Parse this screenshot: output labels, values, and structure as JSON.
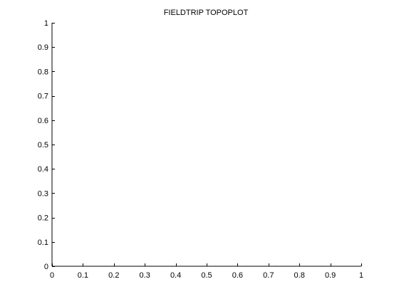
{
  "chart_data": {
    "type": "scatter",
    "title": "FIELDTRIP TOPOPLOT",
    "xlabel": "",
    "ylabel": "",
    "xlim": [
      0,
      1
    ],
    "ylim": [
      0,
      1
    ],
    "xticks": [
      0,
      0.1,
      0.2,
      0.3,
      0.4,
      0.5,
      0.6,
      0.7,
      0.8,
      0.9,
      1
    ],
    "yticks": [
      0,
      0.1,
      0.2,
      0.3,
      0.4,
      0.5,
      0.6,
      0.7,
      0.8,
      0.9,
      1
    ],
    "xtick_labels": [
      "0",
      "0.1",
      "0.2",
      "0.3",
      "0.4",
      "0.5",
      "0.6",
      "0.7",
      "0.8",
      "0.9",
      "1"
    ],
    "ytick_labels": [
      "0",
      "0.1",
      "0.2",
      "0.3",
      "0.4",
      "0.5",
      "0.6",
      "0.7",
      "0.8",
      "0.9",
      "1"
    ],
    "series": [],
    "grid": false
  }
}
